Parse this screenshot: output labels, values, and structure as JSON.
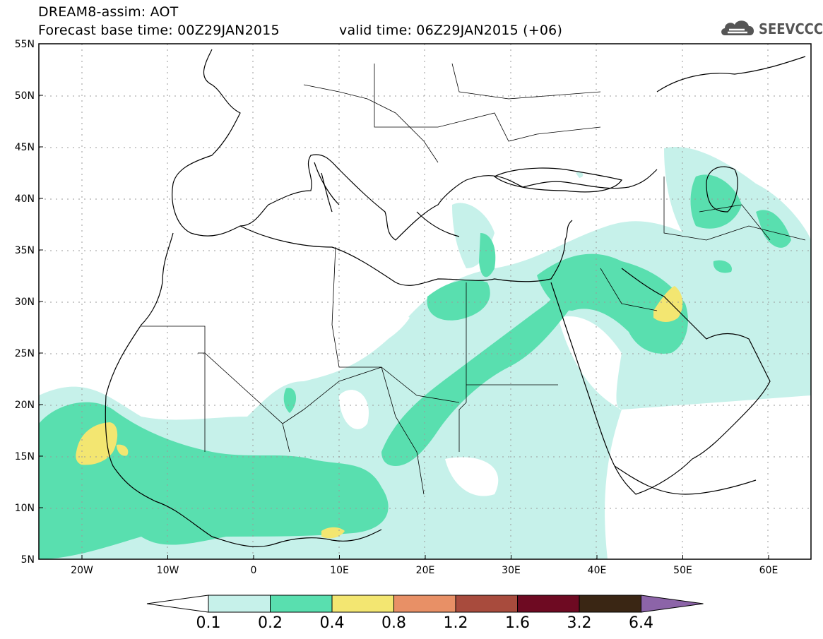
{
  "header": {
    "line1": "DREAM8-assim: AOT",
    "line2": "Forecast base time: 00Z29JAN2015",
    "line3": "valid time: 06Z29JAN2015 (+06)"
  },
  "logo": {
    "text": "SEEVCCC",
    "icon": "cloud-icon"
  },
  "map": {
    "lon_range": [
      -25,
      65
    ],
    "lat_range": [
      5,
      55
    ],
    "lat_ticks": [
      "55N",
      "50N",
      "45N",
      "40N",
      "35N",
      "30N",
      "25N",
      "20N",
      "15N",
      "10N",
      "5N"
    ],
    "lon_ticks": [
      "20W",
      "10W",
      "0",
      "10E",
      "20E",
      "30E",
      "40E",
      "50E",
      "60E"
    ],
    "grid": true
  },
  "colorbar": {
    "labels": [
      "0.1",
      "0.2",
      "0.4",
      "0.8",
      "1.2",
      "1.6",
      "3.2",
      "6.4"
    ],
    "colors": [
      "#ffffff",
      "#c6f1ea",
      "#59dfaf",
      "#f3e671",
      "#e89066",
      "#a84b3d",
      "#6e0a22",
      "#3a2614",
      "#8c64a8"
    ]
  },
  "colors": {
    "aot_01_02": "#c6f1ea",
    "aot_02_04": "#59dfaf",
    "aot_04_08": "#f3e671",
    "border": "#000000"
  }
}
